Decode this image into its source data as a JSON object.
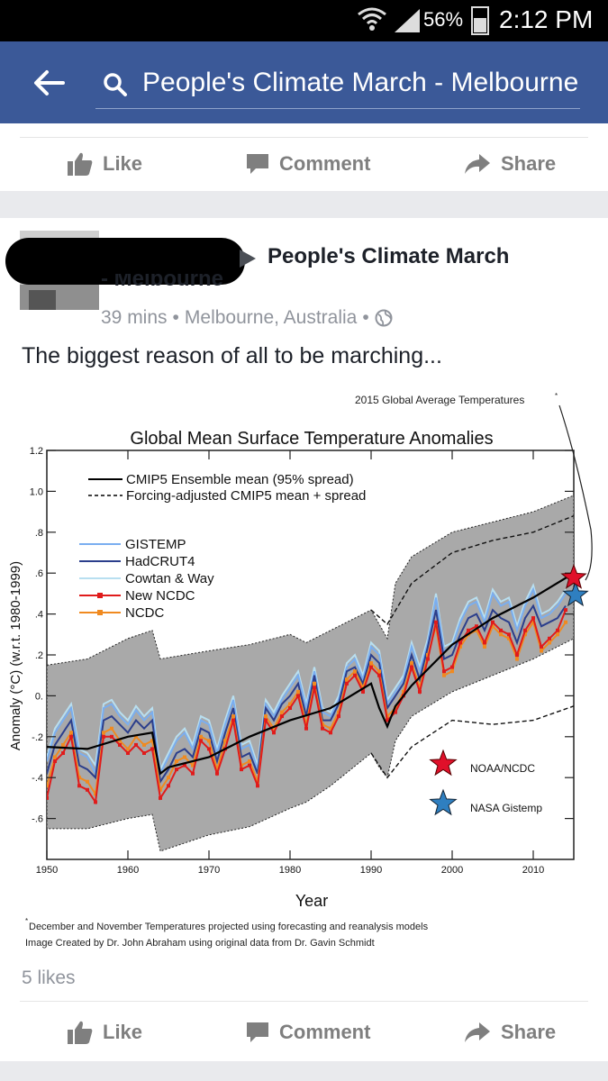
{
  "status_bar": {
    "battery": "56%",
    "time": "2:12 PM"
  },
  "search": {
    "query": "People's Climate March - Melbourne"
  },
  "actions": {
    "like": "Like",
    "comment": "Comment",
    "share": "Share"
  },
  "post": {
    "page_name_line1": "People's Climate March",
    "page_name_line2": "- Melbourne",
    "time": "39 mins",
    "location": "Melbourne, Australia",
    "separator": "•",
    "text": "The biggest reason of all to be marching...",
    "likes": "5 likes"
  },
  "colors": {
    "facebook_blue": "#3b5998",
    "gistemp": "#7aaef0",
    "hadcrut": "#2b3e8c",
    "cowtan": "#b8dff0",
    "new_ncdc": "#e01b1b",
    "ncdc": "#f08a20",
    "spread": "#9a9a9a"
  },
  "chart_data": {
    "type": "line",
    "title": "Global Mean Surface Temperature Anomalies",
    "xlabel": "Year",
    "ylabel": "Anomaly (°C) (w.r.t. 1980-1999)",
    "xlim": [
      1950,
      2015
    ],
    "ylim": [
      -0.8,
      1.2
    ],
    "x_ticks": [
      1950,
      1960,
      1970,
      1980,
      1990,
      2000,
      2010
    ],
    "y_ticks": [
      {
        "value": 1.2,
        "label": "1.2"
      },
      {
        "value": 1.0,
        "label": "1.0"
      },
      {
        "value": 0.8,
        "label": ".8"
      },
      {
        "value": 0.6,
        "label": ".6"
      },
      {
        "value": 0.4,
        "label": ".4"
      },
      {
        "value": 0.2,
        "label": ".2"
      },
      {
        "value": 0.0,
        "label": "0."
      },
      {
        "value": -0.2,
        "label": "-.2"
      },
      {
        "value": -0.4,
        "label": "-.4"
      },
      {
        "value": -0.6,
        "label": "-.6"
      }
    ],
    "legend_top": [
      "CMIP5 Ensemble mean (95% spread)",
      "Forcing-adjusted CMIP5 mean + spread"
    ],
    "grid": false,
    "band": {
      "x": [
        1950,
        1955,
        1960,
        1963,
        1964,
        1970,
        1975,
        1980,
        1982,
        1985,
        1990,
        1991,
        1992,
        1993,
        1995,
        2000,
        2005,
        2010,
        2015
      ],
      "upper": [
        0.15,
        0.18,
        0.28,
        0.32,
        0.18,
        0.22,
        0.25,
        0.3,
        0.26,
        0.32,
        0.42,
        0.35,
        0.28,
        0.55,
        0.68,
        0.8,
        0.85,
        0.9,
        0.98
      ],
      "lower": [
        -0.65,
        -0.65,
        -0.6,
        -0.58,
        -0.76,
        -0.68,
        -0.64,
        -0.55,
        -0.52,
        -0.44,
        -0.28,
        -0.35,
        -0.4,
        -0.22,
        -0.1,
        0.02,
        0.1,
        0.18,
        0.28
      ]
    },
    "cmip5_mean": {
      "x": [
        1950,
        1955,
        1960,
        1963,
        1964,
        1965,
        1970,
        1975,
        1980,
        1985,
        1990,
        1991,
        1992,
        1993,
        1995,
        2000,
        2005,
        2010,
        2015
      ],
      "y": [
        -0.25,
        -0.26,
        -0.2,
        -0.18,
        -0.38,
        -0.35,
        -0.3,
        -0.2,
        -0.12,
        -0.06,
        0.06,
        -0.06,
        -0.15,
        -0.05,
        0.05,
        0.25,
        0.38,
        0.48,
        0.6
      ]
    },
    "forcing_adjusted_upper": {
      "x": [
        1990,
        1992,
        1995,
        2000,
        2005,
        2010,
        2015
      ],
      "y": [
        0.42,
        0.35,
        0.55,
        0.7,
        0.76,
        0.8,
        0.88
      ]
    },
    "forcing_adjusted_lower": {
      "x": [
        1990,
        1992,
        1995,
        2000,
        2005,
        2010,
        2015
      ],
      "y": [
        -0.28,
        -0.4,
        -0.25,
        -0.12,
        -0.14,
        -0.12,
        -0.05
      ]
    },
    "series": [
      {
        "name": "GISTEMP",
        "x": [
          1950,
          1951,
          1952,
          1953,
          1954,
          1955,
          1956,
          1957,
          1958,
          1959,
          1960,
          1961,
          1962,
          1963,
          1964,
          1965,
          1966,
          1967,
          1968,
          1969,
          1970,
          1971,
          1972,
          1973,
          1974,
          1975,
          1976,
          1977,
          1978,
          1979,
          1980,
          1981,
          1982,
          1983,
          1984,
          1985,
          1986,
          1987,
          1988,
          1989,
          1990,
          1991,
          1992,
          1993,
          1994,
          1995,
          1996,
          1997,
          1998,
          1999,
          2000,
          2001,
          2002,
          2003,
          2004,
          2005,
          2006,
          2007,
          2008,
          2009,
          2010,
          2011,
          2012,
          2013,
          2014
        ],
        "y": [
          -0.32,
          -0.18,
          -0.12,
          -0.06,
          -0.28,
          -0.3,
          -0.38,
          -0.06,
          -0.04,
          -0.1,
          -0.14,
          -0.07,
          -0.12,
          -0.08,
          -0.38,
          -0.3,
          -0.22,
          -0.18,
          -0.26,
          -0.12,
          -0.14,
          -0.28,
          -0.14,
          -0.02,
          -0.26,
          -0.24,
          -0.36,
          -0.04,
          -0.1,
          -0.02,
          0.04,
          0.1,
          -0.06,
          0.12,
          -0.08,
          -0.1,
          -0.02,
          0.14,
          0.18,
          0.08,
          0.24,
          0.2,
          -0.04,
          0.02,
          0.08,
          0.24,
          0.12,
          0.26,
          0.48,
          0.22,
          0.24,
          0.36,
          0.44,
          0.46,
          0.36,
          0.5,
          0.44,
          0.46,
          0.32,
          0.44,
          0.52,
          0.38,
          0.4,
          0.44,
          0.5
        ]
      },
      {
        "name": "HadCRUT4",
        "x": [
          1950,
          1951,
          1952,
          1953,
          1954,
          1955,
          1956,
          1957,
          1958,
          1959,
          1960,
          1961,
          1962,
          1963,
          1964,
          1965,
          1966,
          1967,
          1968,
          1969,
          1970,
          1971,
          1972,
          1973,
          1974,
          1975,
          1976,
          1977,
          1978,
          1979,
          1980,
          1981,
          1982,
          1983,
          1984,
          1985,
          1986,
          1987,
          1988,
          1989,
          1990,
          1991,
          1992,
          1993,
          1994,
          1995,
          1996,
          1997,
          1998,
          1999,
          2000,
          2001,
          2002,
          2003,
          2004,
          2005,
          2006,
          2007,
          2008,
          2009,
          2010,
          2011,
          2012,
          2013,
          2014
        ],
        "y": [
          -0.38,
          -0.24,
          -0.18,
          -0.12,
          -0.34,
          -0.36,
          -0.4,
          -0.12,
          -0.1,
          -0.14,
          -0.18,
          -0.12,
          -0.16,
          -0.12,
          -0.42,
          -0.36,
          -0.28,
          -0.26,
          -0.3,
          -0.16,
          -0.18,
          -0.32,
          -0.18,
          -0.06,
          -0.3,
          -0.28,
          -0.38,
          -0.06,
          -0.12,
          -0.04,
          0.0,
          0.06,
          -0.1,
          0.1,
          -0.12,
          -0.12,
          -0.04,
          0.12,
          0.14,
          0.06,
          0.2,
          0.16,
          -0.06,
          0.0,
          0.06,
          0.2,
          0.08,
          0.24,
          0.42,
          0.18,
          0.2,
          0.3,
          0.38,
          0.4,
          0.32,
          0.42,
          0.38,
          0.36,
          0.26,
          0.38,
          0.44,
          0.34,
          0.36,
          0.38,
          0.44
        ]
      },
      {
        "name": "Cowtan & Way",
        "x": [
          1950,
          1951,
          1952,
          1953,
          1954,
          1955,
          1956,
          1957,
          1958,
          1959,
          1960,
          1961,
          1962,
          1963,
          1964,
          1965,
          1966,
          1967,
          1968,
          1969,
          1970,
          1971,
          1972,
          1973,
          1974,
          1975,
          1976,
          1977,
          1978,
          1979,
          1980,
          1981,
          1982,
          1983,
          1984,
          1985,
          1986,
          1987,
          1988,
          1989,
          1990,
          1991,
          1992,
          1993,
          1994,
          1995,
          1996,
          1997,
          1998,
          1999,
          2000,
          2001,
          2002,
          2003,
          2004,
          2005,
          2006,
          2007,
          2008,
          2009,
          2010,
          2011,
          2012,
          2013,
          2014
        ],
        "y": [
          -0.3,
          -0.16,
          -0.1,
          -0.04,
          -0.26,
          -0.28,
          -0.34,
          -0.04,
          -0.02,
          -0.08,
          -0.12,
          -0.05,
          -0.1,
          -0.06,
          -0.36,
          -0.28,
          -0.2,
          -0.16,
          -0.24,
          -0.1,
          -0.12,
          -0.26,
          -0.12,
          0.0,
          -0.24,
          -0.22,
          -0.34,
          -0.02,
          -0.08,
          0.0,
          0.06,
          0.12,
          -0.04,
          0.14,
          -0.06,
          -0.08,
          0.0,
          0.16,
          0.2,
          0.1,
          0.26,
          0.22,
          -0.02,
          0.04,
          0.1,
          0.26,
          0.14,
          0.28,
          0.5,
          0.24,
          0.26,
          0.38,
          0.46,
          0.48,
          0.38,
          0.52,
          0.46,
          0.48,
          0.34,
          0.46,
          0.54,
          0.4,
          0.42,
          0.46,
          0.52
        ]
      },
      {
        "name": "New NCDC",
        "x": [
          1950,
          1951,
          1952,
          1953,
          1954,
          1955,
          1956,
          1957,
          1958,
          1959,
          1960,
          1961,
          1962,
          1963,
          1964,
          1965,
          1966,
          1967,
          1968,
          1969,
          1970,
          1971,
          1972,
          1973,
          1974,
          1975,
          1976,
          1977,
          1978,
          1979,
          1980,
          1981,
          1982,
          1983,
          1984,
          1985,
          1986,
          1987,
          1988,
          1989,
          1990,
          1991,
          1992,
          1993,
          1994,
          1995,
          1996,
          1997,
          1998,
          1999,
          2000,
          2001,
          2002,
          2003,
          2004,
          2005,
          2006,
          2007,
          2008,
          2009,
          2010,
          2011,
          2012,
          2013,
          2014
        ],
        "y": [
          -0.5,
          -0.32,
          -0.28,
          -0.2,
          -0.44,
          -0.46,
          -0.52,
          -0.2,
          -0.2,
          -0.24,
          -0.28,
          -0.24,
          -0.28,
          -0.26,
          -0.5,
          -0.44,
          -0.36,
          -0.34,
          -0.38,
          -0.22,
          -0.26,
          -0.38,
          -0.26,
          -0.12,
          -0.36,
          -0.34,
          -0.44,
          -0.12,
          -0.18,
          -0.1,
          -0.06,
          0.0,
          -0.16,
          0.04,
          -0.16,
          -0.18,
          -0.1,
          0.06,
          0.1,
          0.02,
          0.14,
          0.1,
          -0.12,
          -0.08,
          0.0,
          0.14,
          0.02,
          0.18,
          0.36,
          0.12,
          0.14,
          0.26,
          0.32,
          0.34,
          0.26,
          0.36,
          0.32,
          0.3,
          0.2,
          0.32,
          0.38,
          0.24,
          0.28,
          0.32,
          0.42
        ]
      },
      {
        "name": "NCDC",
        "x": [
          1950,
          1951,
          1952,
          1953,
          1954,
          1955,
          1956,
          1957,
          1958,
          1959,
          1960,
          1961,
          1962,
          1963,
          1964,
          1965,
          1966,
          1967,
          1968,
          1969,
          1970,
          1971,
          1972,
          1973,
          1974,
          1975,
          1976,
          1977,
          1978,
          1979,
          1980,
          1981,
          1982,
          1983,
          1984,
          1985,
          1986,
          1987,
          1988,
          1989,
          1990,
          1991,
          1992,
          1993,
          1994,
          1995,
          1996,
          1997,
          1998,
          1999,
          2000,
          2001,
          2002,
          2003,
          2004,
          2005,
          2006,
          2007,
          2008,
          2009,
          2010,
          2011,
          2012,
          2013,
          2014
        ],
        "y": [
          -0.44,
          -0.3,
          -0.24,
          -0.18,
          -0.4,
          -0.42,
          -0.48,
          -0.18,
          -0.16,
          -0.22,
          -0.26,
          -0.2,
          -0.24,
          -0.22,
          -0.46,
          -0.4,
          -0.32,
          -0.3,
          -0.34,
          -0.2,
          -0.22,
          -0.36,
          -0.22,
          -0.1,
          -0.34,
          -0.32,
          -0.42,
          -0.1,
          -0.16,
          -0.08,
          -0.04,
          0.02,
          -0.14,
          0.06,
          -0.14,
          -0.16,
          -0.08,
          0.08,
          0.12,
          0.04,
          0.16,
          0.12,
          -0.1,
          -0.06,
          0.02,
          0.16,
          0.04,
          0.2,
          0.34,
          0.1,
          0.12,
          0.24,
          0.3,
          0.32,
          0.24,
          0.34,
          0.3,
          0.28,
          0.18,
          0.3,
          0.36,
          0.22,
          0.26,
          0.3,
          0.36
        ]
      }
    ],
    "stars": [
      {
        "name": "NOAA/NCDC",
        "x": 2015,
        "y": 0.56,
        "color": "#e0102a"
      },
      {
        "name": "NASA Gistemp",
        "x": 2015,
        "y": 0.51,
        "color": "#2f7fc0"
      }
    ],
    "annotation": "2015 Global Average Temperatures",
    "annotation_mark": "*",
    "footnote_1": "December and November Temperatures projected using forecasting and reanalysis models",
    "footnote_1_mark": "*",
    "footnote_2": "Image Created by Dr. John Abraham using original data from Dr. Gavin Schmidt"
  }
}
